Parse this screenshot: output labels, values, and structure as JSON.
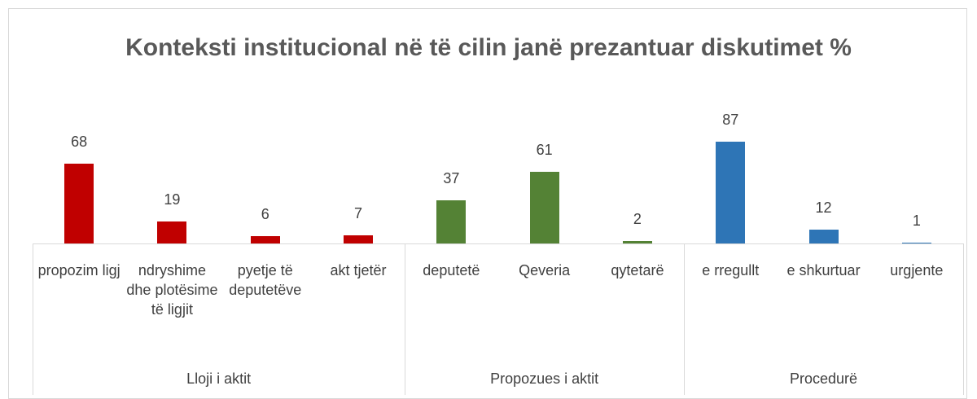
{
  "chart_data": {
    "type": "bar",
    "title": "Konteksti institucional në të cilin janë prezantuar diskutimet %",
    "groups": [
      {
        "name": "Lloji i aktit",
        "color": "#c00000",
        "categories": [
          "propozim ligj",
          "ndryshime dhe plotësime të ligjit",
          "pyetje të deputetëve",
          "akt tjetër"
        ],
        "values": [
          68,
          19,
          6,
          7
        ]
      },
      {
        "name": "Propozues i aktit",
        "color": "#548235",
        "categories": [
          "deputetë",
          "Qeveria",
          "qytetarë"
        ],
        "values": [
          37,
          61,
          2
        ]
      },
      {
        "name": "Procedurë",
        "color": "#2e75b6",
        "categories": [
          "e rregullt",
          "e shkurtuar",
          "urgjente"
        ],
        "values": [
          87,
          12,
          1
        ]
      }
    ]
  }
}
